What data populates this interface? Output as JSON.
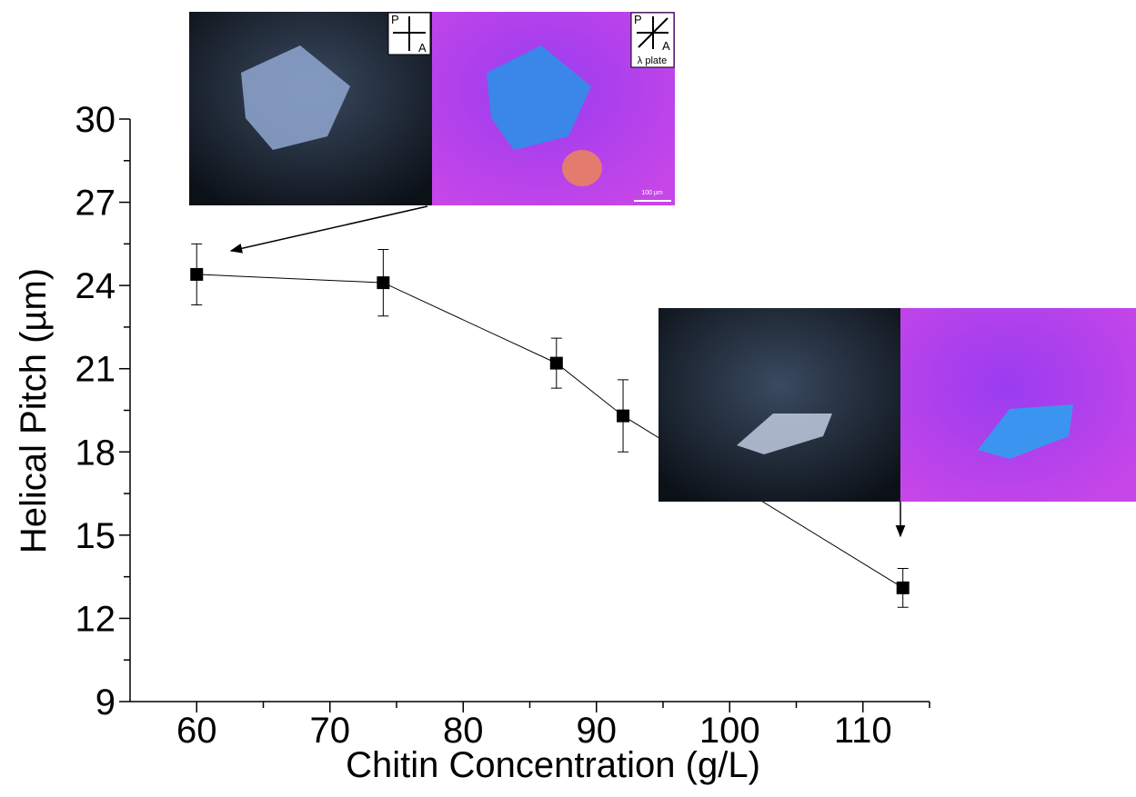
{
  "chart_data": {
    "type": "line",
    "x_label": "Chitin Concentration (g/L)",
    "y_label": "Helical Pitch (µm)",
    "x": [
      60,
      74,
      87,
      92,
      113
    ],
    "series": [
      {
        "color": "#000000",
        "values": [
          24.4,
          24.1,
          21.2,
          19.3,
          13.1
        ],
        "errors": [
          1.1,
          1.2,
          0.9,
          1.3,
          0.7
        ]
      }
    ],
    "xlim": [
      55,
      115
    ],
    "xticks": [
      60,
      70,
      80,
      90,
      100,
      110
    ],
    "xminorticks": [
      65,
      75,
      85,
      95,
      105,
      115
    ],
    "ylim": [
      9,
      30
    ],
    "yticks": [
      9,
      12,
      15,
      18,
      21,
      24,
      27,
      30
    ],
    "yminorticks": [
      10.5,
      13.5,
      16.5,
      19.5,
      22.5,
      25.5,
      28.5
    ],
    "inset_labels": {
      "polarizer": "P",
      "analyzer": "A",
      "plate": "λ plate",
      "scale": "100 µm"
    }
  }
}
